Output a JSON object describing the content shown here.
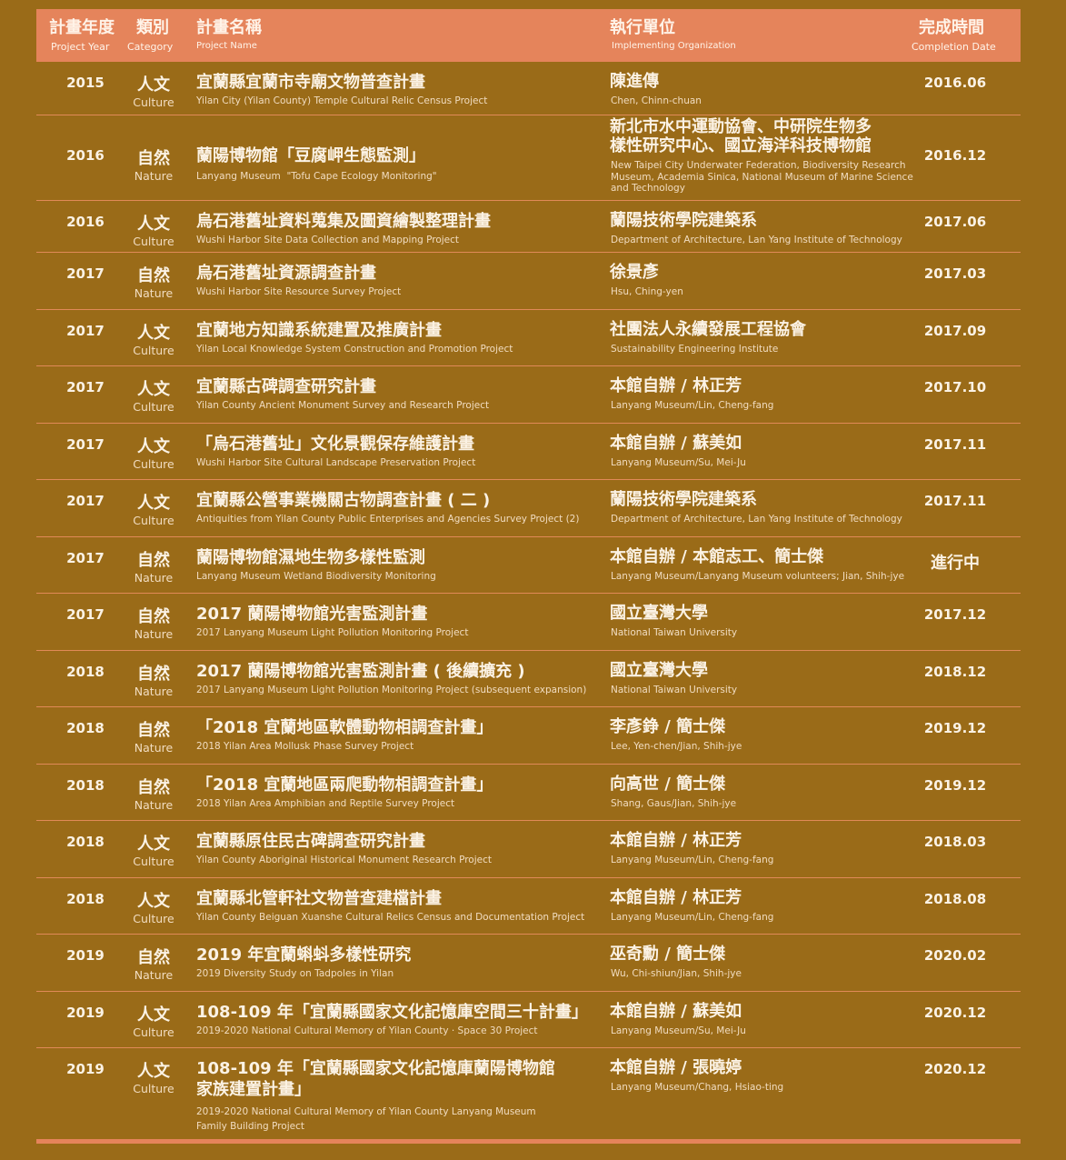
{
  "colors": {
    "background": "#9a6b18",
    "header": "#e5845b",
    "divider": "#e08a58"
  },
  "header": {
    "year": {
      "zh": "計畫年度",
      "en": "Project Year"
    },
    "category": {
      "zh": "類別",
      "en": "Category"
    },
    "name": {
      "zh": "計畫名稱",
      "en": "Project Name"
    },
    "org": {
      "zh": "執行單位",
      "en": "Implementing Organization"
    },
    "date": {
      "zh": "完成時間",
      "en": "Completion Date"
    }
  },
  "rows": [
    {
      "year": "2015",
      "cat": "人文",
      "catEn": "Culture",
      "name": "宜蘭縣宜蘭市寺廟文物普查計畫",
      "nameEn": "Yilan City (Yilan County) Temple Cultural Relic Census Project",
      "org": "陳進傳",
      "orgEn": "Chen, Chinn-chuan",
      "date": "2016.06"
    },
    {
      "year": "2016",
      "cat": "自然",
      "catEn": "Nature",
      "name": "蘭陽博物館「豆腐岬生態監測」",
      "nameEn": "Lanyang Museum  \"Tofu Cape Ecology Monitoring\"",
      "org": "新北市水中運動協會、中研院生物多\n樣性研究中心、國立海洋科技博物館",
      "orgEn": "New Taipei City Underwater Federation, Biodiversity Research\nMuseum, Academia Sinica, National Museum of Marine Science\nand Technology",
      "date": "2016.12"
    },
    {
      "year": "2016",
      "cat": "人文",
      "catEn": "Culture",
      "name": "烏石港舊址資料蒐集及圖資繪製整理計畫",
      "nameEn": "Wushi Harbor Site Data Collection and Mapping Project",
      "org": "蘭陽技術學院建築系",
      "orgEn": "Department of Architecture, Lan Yang Institute of Technology",
      "date": "2017.06"
    },
    {
      "year": "2017",
      "cat": "自然",
      "catEn": "Nature",
      "name": "烏石港舊址資源調查計畫",
      "nameEn": "Wushi Harbor Site Resource Survey Project",
      "org": "徐景彥",
      "orgEn": "Hsu, Ching-yen",
      "date": "2017.03"
    },
    {
      "year": "2017",
      "cat": "人文",
      "catEn": "Culture",
      "name": "宜蘭地方知識系統建置及推廣計畫",
      "nameEn": "Yilan Local Knowledge System Construction and Promotion Project",
      "org": "社團法人永續發展工程協會",
      "orgEn": "Sustainability Engineering Institute",
      "date": "2017.09"
    },
    {
      "year": "2017",
      "cat": "人文",
      "catEn": "Culture",
      "name": "宜蘭縣古碑調查研究計畫",
      "nameEn": "Yilan County Ancient Monument Survey and Research Project",
      "org": "本館自辦 / 林正芳",
      "orgEn": "Lanyang Museum/Lin, Cheng-fang",
      "date": "2017.10"
    },
    {
      "year": "2017",
      "cat": "人文",
      "catEn": "Culture",
      "name": "「烏石港舊址」文化景觀保存維護計畫",
      "nameEn": "Wushi Harbor Site Cultural Landscape Preservation Project",
      "org": "本館自辦 / 蘇美如",
      "orgEn": "Lanyang Museum/Su, Mei-Ju",
      "date": "2017.11"
    },
    {
      "year": "2017",
      "cat": "人文",
      "catEn": "Culture",
      "name": "宜蘭縣公營事業機關古物調查計畫 ( 二 )",
      "nameEn": "Antiquities from Yilan County Public Enterprises and Agencies Survey Project (2)",
      "org": "蘭陽技術學院建築系",
      "orgEn": "Department of Architecture, Lan Yang Institute of Technology",
      "date": "2017.11"
    },
    {
      "year": "2017",
      "cat": "自然",
      "catEn": "Nature",
      "name": "蘭陽博物館濕地生物多樣性監測",
      "nameEn": "Lanyang Museum Wetland Biodiversity Monitoring",
      "org": "本館自辦 / 本館志工、簡士傑",
      "orgEn": "Lanyang Museum/Lanyang Museum volunteers; Jian, Shih-jye",
      "date": "進行中"
    },
    {
      "year": "2017",
      "cat": "自然",
      "catEn": "Nature",
      "name": "2017 蘭陽博物館光害監測計畫",
      "nameEn": "2017 Lanyang Museum Light Pollution Monitoring Project",
      "org": "國立臺灣大學",
      "orgEn": "National Taiwan University",
      "date": "2017.12"
    },
    {
      "year": "2018",
      "cat": "自然",
      "catEn": "Nature",
      "name": "2017 蘭陽博物館光害監測計畫 ( 後續擴充 )",
      "nameEn": "2017 Lanyang Museum Light Pollution Monitoring Project (subsequent expansion)",
      "org": "國立臺灣大學",
      "orgEn": "National Taiwan University",
      "date": "2018.12"
    },
    {
      "year": "2018",
      "cat": "自然",
      "catEn": "Nature",
      "name": "「2018 宜蘭地區軟體動物相調查計畫」",
      "nameEn": "2018 Yilan Area Mollusk Phase Survey Project",
      "org": "李彥錚 / 簡士傑",
      "orgEn": "Lee, Yen-chen/Jian, Shih-jye",
      "date": "2019.12"
    },
    {
      "year": "2018",
      "cat": "自然",
      "catEn": "Nature",
      "name": "「2018 宜蘭地區兩爬動物相調查計畫」",
      "nameEn": "2018 Yilan Area Amphibian and Reptile Survey Project",
      "org": "向高世 / 簡士傑",
      "orgEn": "Shang, Gaus/Jian, Shih-jye",
      "date": "2019.12"
    },
    {
      "year": "2018",
      "cat": "人文",
      "catEn": "Culture",
      "name": "宜蘭縣原住民古碑調查研究計畫",
      "nameEn": "Yilan County Aboriginal Historical Monument Research Project",
      "org": "本館自辦 / 林正芳",
      "orgEn": "Lanyang Museum/Lin, Cheng-fang",
      "date": "2018.03"
    },
    {
      "year": "2018",
      "cat": "人文",
      "catEn": "Culture",
      "name": "宜蘭縣北管軒社文物普查建檔計畫",
      "nameEn": "Yilan County Beiguan Xuanshe Cultural Relics Census and Documentation Project",
      "org": "本館自辦 / 林正芳",
      "orgEn": "Lanyang Museum/Lin, Cheng-fang",
      "date": "2018.08"
    },
    {
      "year": "2019",
      "cat": "自然",
      "catEn": "Nature",
      "name": "2019 年宜蘭蝌蚪多樣性研究",
      "nameEn": "2019 Diversity Study on Tadpoles in Yilan",
      "org": "巫奇勳 / 簡士傑",
      "orgEn": "Wu, Chi-shiun/Jian, Shih-jye",
      "date": "2020.02"
    },
    {
      "year": "2019",
      "cat": "人文",
      "catEn": "Culture",
      "name": "108-109 年「宜蘭縣國家文化記憶庫空間三十計畫」",
      "nameEn": "2019-2020 National Cultural Memory of Yilan County · Space 30 Project",
      "org": "本館自辦 / 蘇美如",
      "orgEn": "Lanyang Museum/Su, Mei-Ju",
      "date": "2020.12"
    },
    {
      "year": "2019",
      "cat": "人文",
      "catEn": "Culture",
      "name": "108-109 年「宜蘭縣國家文化記憶庫蘭陽博物館\n家族建置計畫」",
      "nameEn": "2019-2020 National Cultural Memory of Yilan County Lanyang Museum\nFamily Building Project",
      "org": "本館自辦 / 張曉婷",
      "orgEn": "Lanyang Museum/Chang, Hsiao-ting",
      "date": "2020.12"
    }
  ]
}
